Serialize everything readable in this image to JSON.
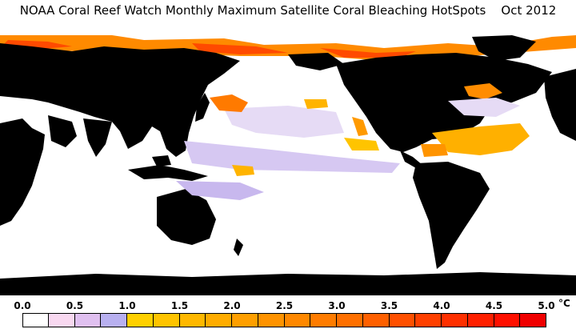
{
  "title": "NOAA Coral Reef Watch Monthly Maximum Satellite Coral Bleaching HotSpots    Oct 2012",
  "colorbar": {
    "labels": [
      "0.0",
      "0.5",
      "1.0",
      "1.5",
      "2.0",
      "2.5",
      "3.0",
      "3.5",
      "4.0",
      "4.5",
      "5.0"
    ],
    "unit": "°C",
    "colors": [
      "#ffffff",
      "#f8d8f0",
      "#e0c0f0",
      "#b8b0f0",
      "#ffd000",
      "#ffc400",
      "#ffb800",
      "#ffac00",
      "#ff9f00",
      "#ff9300",
      "#ff8800",
      "#ff7c00",
      "#ff7000",
      "#ff6000",
      "#ff5000",
      "#ff4000",
      "#ff3000",
      "#ff2000",
      "#ff1000",
      "#f00000"
    ]
  },
  "map_colors": {
    "land": "#000000",
    "ocean": "#ffffff",
    "low_hotspot": "#d8c8f0",
    "hotspot_warm": "#ffb400",
    "hotspot_hot": "#ff5000"
  }
}
